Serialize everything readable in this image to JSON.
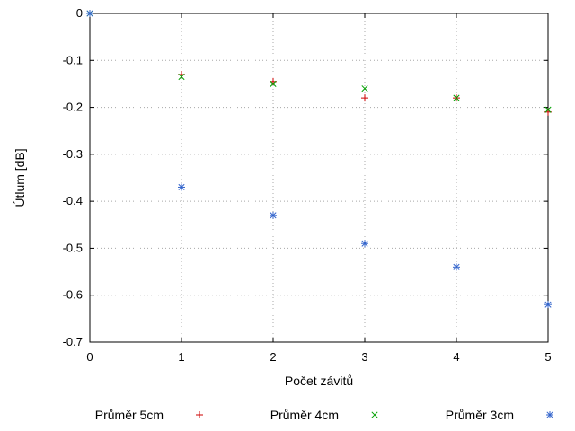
{
  "chart_data": {
    "type": "scatter",
    "title": "",
    "xlabel": "Počet závitů",
    "ylabel": "Útlum [dB]",
    "xlim": [
      0,
      5
    ],
    "ylim": [
      -0.7,
      0
    ],
    "grid": true,
    "legend_position": "bottom",
    "xtick_values": [
      0,
      1,
      2,
      3,
      4,
      5
    ],
    "xtick_labels": [
      "0",
      "1",
      "2",
      "3",
      "4",
      "5"
    ],
    "ytick_values": [
      0,
      -0.1,
      -0.2,
      -0.3,
      -0.4,
      -0.5,
      -0.6,
      -0.7
    ],
    "ytick_labels": [
      "0",
      "-0.1",
      "-0.2",
      "-0.3",
      "-0.4",
      "-0.5",
      "-0.6",
      "-0.7"
    ],
    "series": [
      {
        "name": "Průměr 5cm",
        "marker": "plus",
        "color": "#cc0000",
        "x": [
          0,
          1,
          2,
          3,
          4,
          5
        ],
        "y": [
          0,
          -0.13,
          -0.145,
          -0.18,
          -0.18,
          -0.21
        ]
      },
      {
        "name": "Průměr 4cm",
        "marker": "cross",
        "color": "#00a000",
        "x": [
          0,
          1,
          2,
          3,
          4,
          5
        ],
        "y": [
          0,
          -0.135,
          -0.15,
          -0.16,
          -0.18,
          -0.205
        ]
      },
      {
        "name": "Průměr 3cm",
        "marker": "asterisk",
        "color": "#3465cc",
        "x": [
          0,
          1,
          2,
          3,
          4,
          5
        ],
        "y": [
          0,
          -0.37,
          -0.43,
          -0.49,
          -0.54,
          -0.62
        ]
      }
    ]
  }
}
